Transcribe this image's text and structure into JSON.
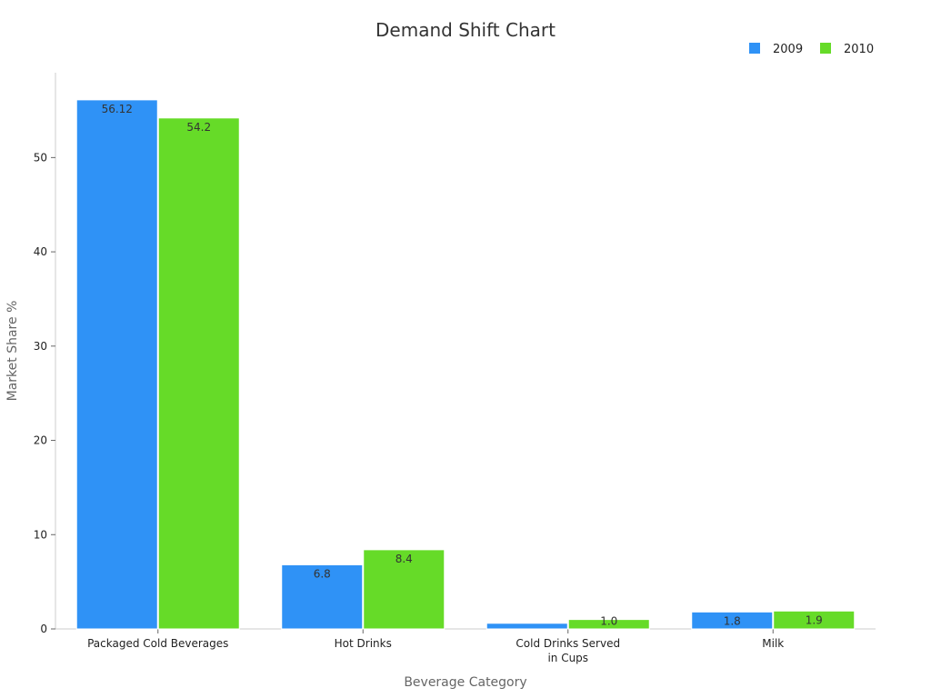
{
  "chart_data": {
    "type": "bar",
    "title": "Demand Shift Chart",
    "xlabel": "Beverage Category",
    "ylabel": "Market Share %",
    "categories": [
      [
        "Packaged Cold Beverages"
      ],
      [
        "Hot Drinks"
      ],
      [
        "Cold Drinks Served",
        "in Cups"
      ],
      [
        "Milk"
      ]
    ],
    "series": [
      {
        "name": "2009",
        "color": "#2f92f6",
        "values": [
          56.12,
          6.8,
          0.6,
          1.8
        ],
        "labels": [
          "56.12",
          "6.8",
          "",
          "1.8"
        ]
      },
      {
        "name": "2010",
        "color": "#66db28",
        "values": [
          54.2,
          8.4,
          1.0,
          1.9
        ],
        "labels": [
          "54.2",
          "8.4",
          "1.0",
          "1.9"
        ]
      }
    ],
    "ylim": [
      0,
      59
    ],
    "yticks": [
      0,
      10,
      20,
      30,
      40,
      50
    ],
    "legend_position": "top-right",
    "grid": false
  }
}
